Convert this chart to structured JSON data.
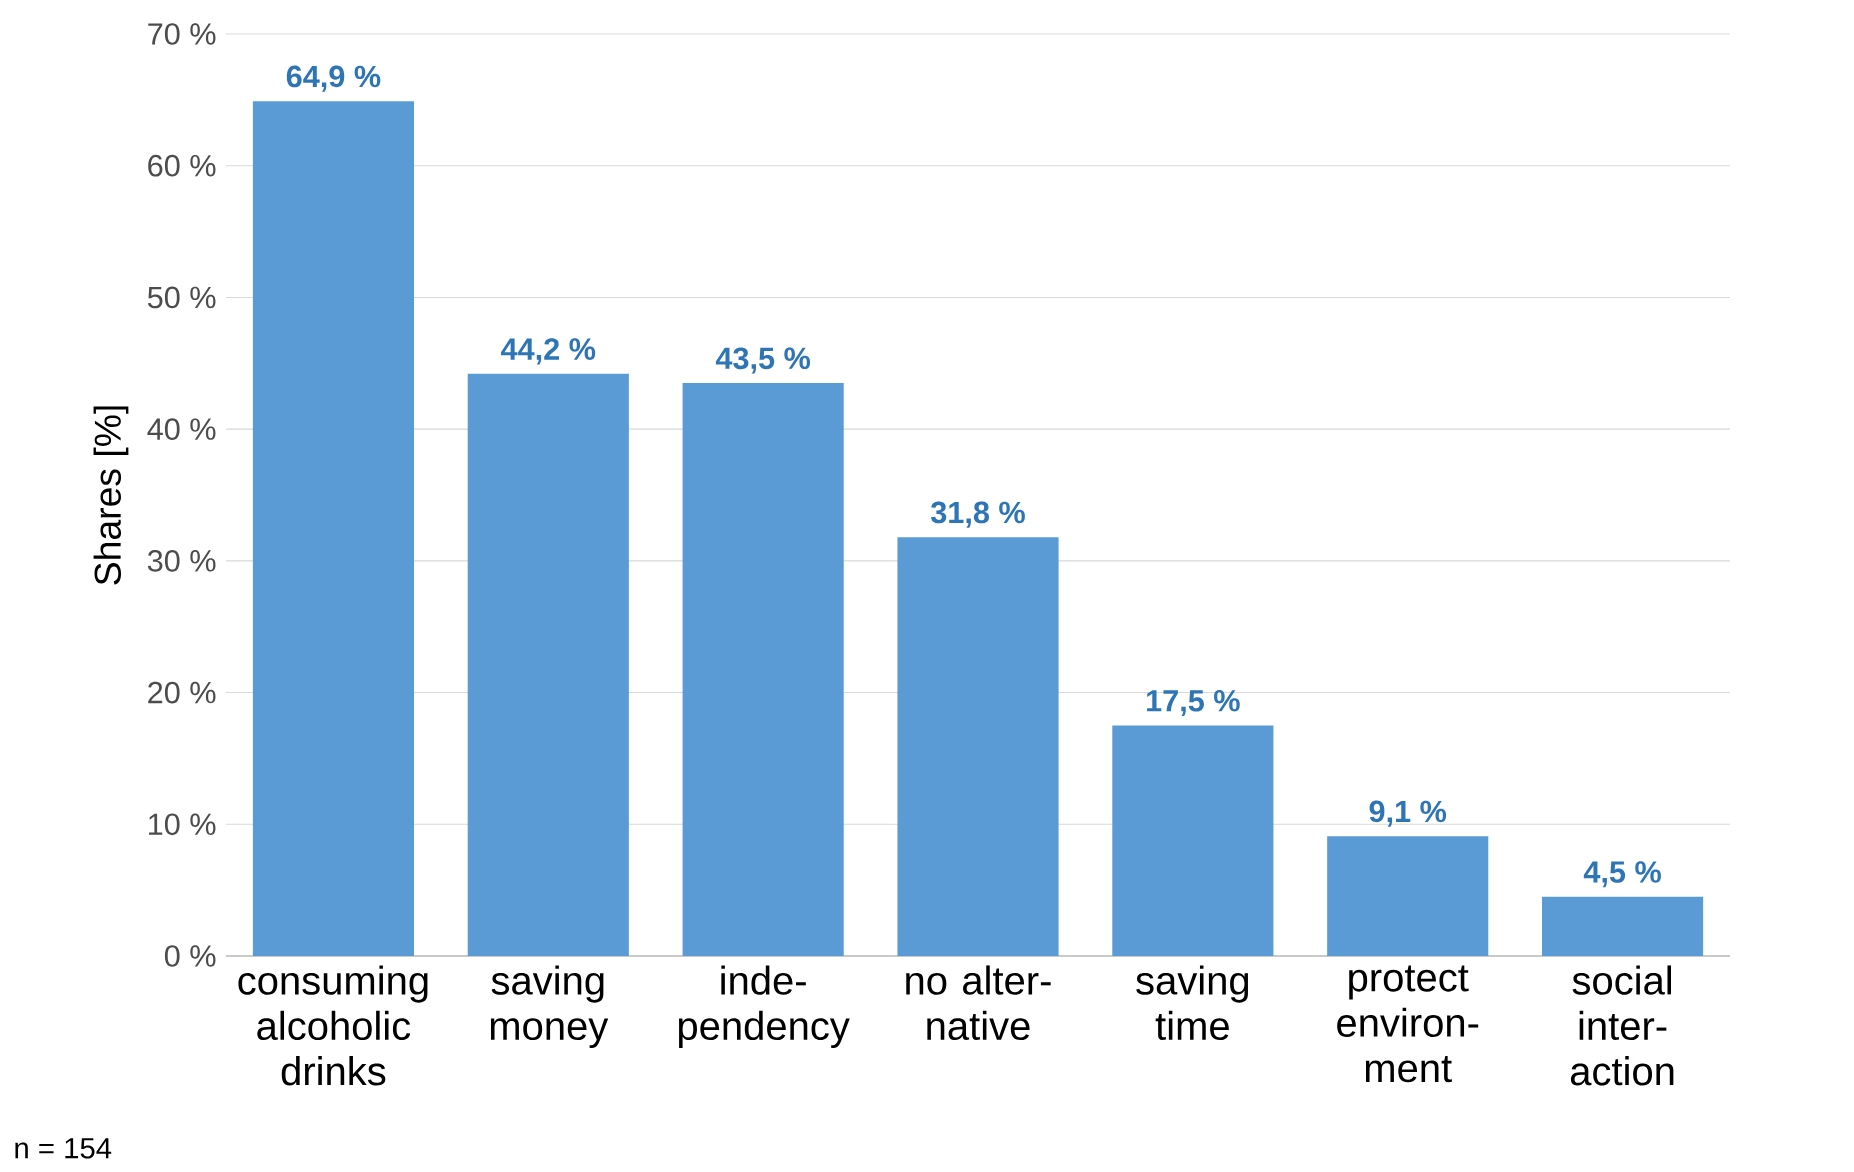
{
  "chart_data": {
    "type": "bar",
    "ylabel": "Shares [%]",
    "categories": [
      "consuming alcoholic drinks",
      "saving money",
      "inde- pendency",
      "no alter- native",
      "saving time",
      "protect environ- ment",
      "social inter- action"
    ],
    "values": [
      64.9,
      44.2,
      43.5,
      31.8,
      17.5,
      9.1,
      4.5
    ],
    "value_labels": [
      "64,9 %",
      "44,2 %",
      "43,5 %",
      "31,8 %",
      "17,5 %",
      "9,1 %",
      "4,5 %"
    ],
    "color": "#5b9bd5",
    "ylim": [
      0,
      70
    ],
    "yticks": [
      {
        "value": 0,
        "label": "0 %"
      },
      {
        "value": 10,
        "label": "10 %"
      },
      {
        "value": 20,
        "label": "20 %"
      },
      {
        "value": 30,
        "label": "30 %"
      },
      {
        "value": 40,
        "label": "40 %"
      },
      {
        "value": 50,
        "label": "50 %"
      },
      {
        "value": 60,
        "label": "60 %"
      },
      {
        "value": 70,
        "label": "70 %"
      }
    ],
    "grid": "y",
    "annotations": [
      "n = 154"
    ]
  }
}
